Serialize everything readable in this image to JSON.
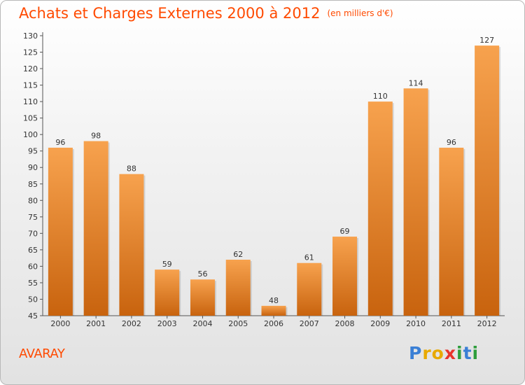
{
  "header": {
    "title": "Achats et Charges Externes 2000 à 2012",
    "unit": "(en milliers d'€)"
  },
  "commune": "AVARAY",
  "logo": {
    "letters": [
      "P",
      "r",
      "o",
      "x",
      "i",
      "t",
      "i"
    ],
    "colors": [
      "#3a7fd5",
      "#e8a900",
      "#e8a900",
      "#e8342c",
      "#2e9e3c",
      "#3a7fd5",
      "#2e9e3c"
    ]
  },
  "colors": {
    "title": "#ff4a00",
    "bar_top": "#f7a24e",
    "bar_bottom": "#c8630e"
  },
  "chart_data": {
    "type": "bar",
    "title": "Achats et Charges Externes 2000 à 2012",
    "subtitle": "(en milliers d'€)",
    "xlabel": "",
    "ylabel": "",
    "categories": [
      "2000",
      "2001",
      "2002",
      "2003",
      "2004",
      "2005",
      "2006",
      "2007",
      "2008",
      "2009",
      "2010",
      "2011",
      "2012"
    ],
    "values": [
      96,
      98,
      88,
      59,
      56,
      62,
      48,
      61,
      69,
      110,
      114,
      96,
      127
    ],
    "ylim": [
      45,
      130
    ],
    "yticks": [
      45,
      50,
      55,
      60,
      65,
      70,
      75,
      80,
      85,
      90,
      95,
      100,
      105,
      110,
      115,
      120,
      125,
      130
    ],
    "grid": false,
    "data_labels": true
  }
}
